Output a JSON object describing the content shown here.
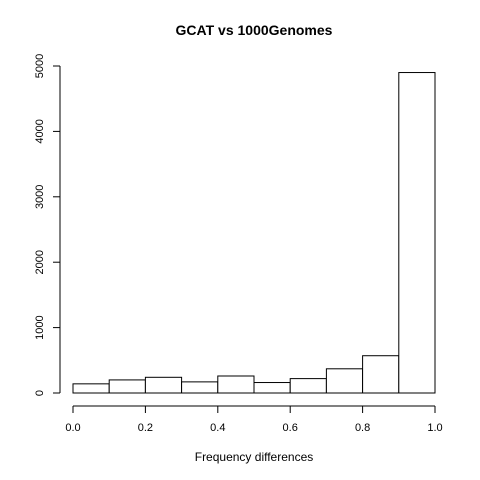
{
  "chart_data": {
    "type": "histogram",
    "title": "GCAT vs 1000Genomes",
    "xlabel": "Frequency differences",
    "ylabel": "",
    "bin_edges": [
      0.0,
      0.1,
      0.2,
      0.3,
      0.4,
      0.5,
      0.6,
      0.7,
      0.8,
      0.9,
      1.0
    ],
    "counts": [
      140,
      200,
      240,
      170,
      260,
      160,
      220,
      370,
      570,
      4900
    ],
    "xlim": [
      0.0,
      1.0
    ],
    "ylim": [
      0,
      5000
    ],
    "x_ticks": [
      0.0,
      0.2,
      0.4,
      0.6,
      0.8,
      1.0
    ],
    "x_tick_labels": [
      "0.0",
      "0.2",
      "0.4",
      "0.6",
      "0.8",
      "1.0"
    ],
    "y_ticks": [
      0,
      1000,
      2000,
      3000,
      4000,
      5000
    ],
    "y_tick_labels": [
      "0",
      "1000",
      "2000",
      "3000",
      "4000",
      "5000"
    ],
    "grid": false,
    "bar_fill": "#ffffff",
    "bar_stroke": "#000000"
  }
}
